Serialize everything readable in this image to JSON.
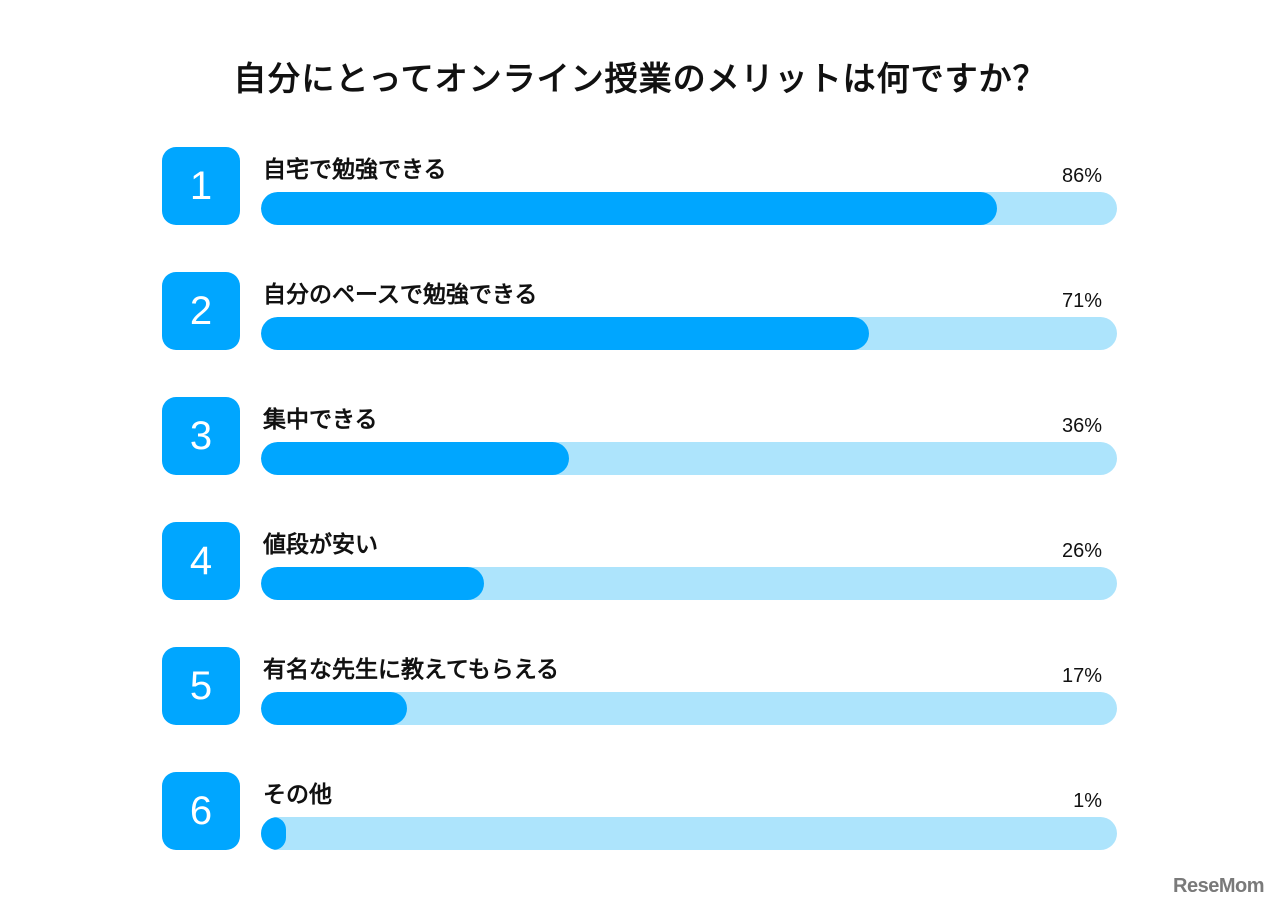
{
  "chart_data": {
    "type": "bar",
    "title": "自分にとってオンライン授業のメリットは何ですか？",
    "orientation": "horizontal",
    "ylim": [
      0,
      100
    ],
    "items": [
      {
        "rank": "1",
        "label": "自宅で勉強できる",
        "value": 86,
        "value_label": "86%"
      },
      {
        "rank": "2",
        "label": "自分のペースで勉強できる",
        "value": 71,
        "value_label": "71%"
      },
      {
        "rank": "3",
        "label": "集中できる",
        "value": 36,
        "value_label": "36%"
      },
      {
        "rank": "4",
        "label": "値段が安い",
        "value": 26,
        "value_label": "26%"
      },
      {
        "rank": "5",
        "label": "有名な先生に教えてもらえる",
        "value": 17,
        "value_label": "17%"
      },
      {
        "rank": "6",
        "label": "その他",
        "value": 1,
        "value_label": "1%"
      }
    ],
    "colors": {
      "bar": "#00a6ff",
      "track": "#ade4fc",
      "badge": "#00a6ff"
    }
  },
  "watermark": "ReseMom"
}
